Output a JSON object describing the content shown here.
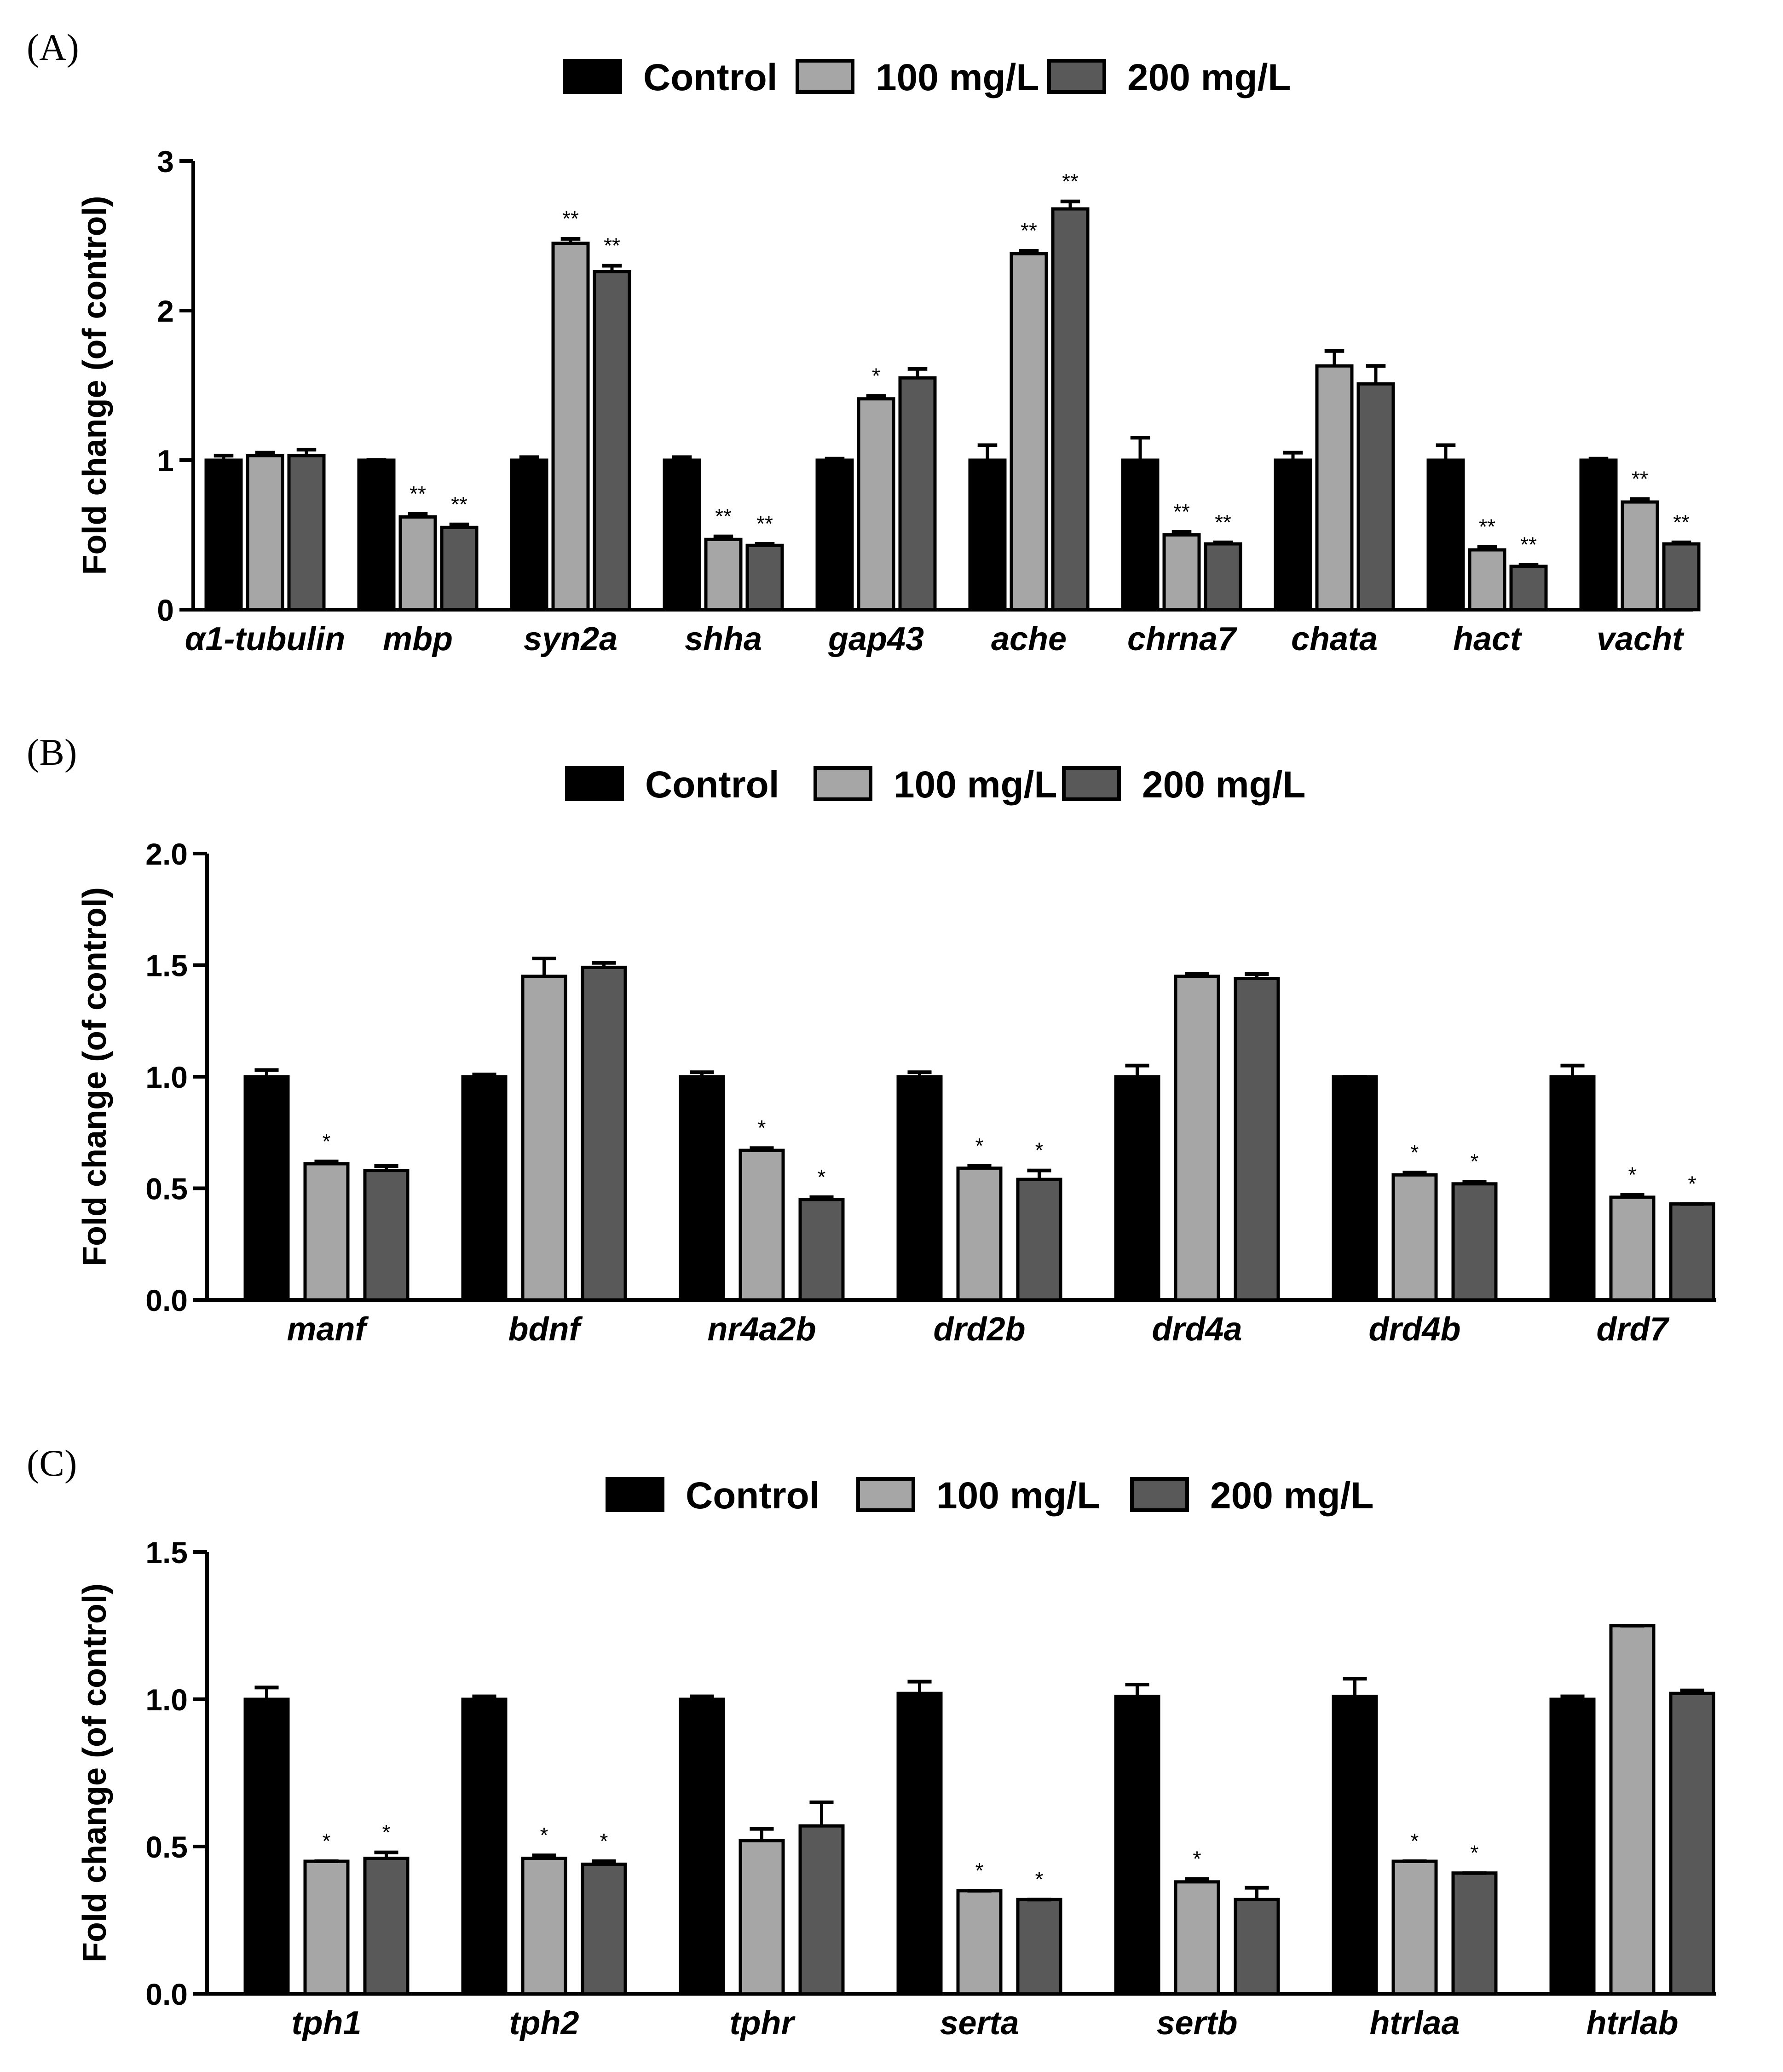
{
  "colors": {
    "control": "#000000",
    "dose100": "#a6a6a6",
    "dose200": "#595959",
    "axis": "#000000"
  },
  "chart_data": [
    {
      "panel": "(A)",
      "type": "bar",
      "legend": [
        "Control",
        "100 mg/L",
        "200 mg/L"
      ],
      "legend_position": "top-center",
      "ylabel": "Fold change (of control)",
      "ylim": [
        0,
        3
      ],
      "yticks": [
        0,
        1,
        2,
        3
      ],
      "ytick_labels": [
        "0",
        "1",
        "2",
        "3"
      ],
      "categories": [
        "α1-tubulin",
        "mbp",
        "syn2a",
        "shha",
        "gap43",
        "ache",
        "chrna7",
        "chata",
        "hact",
        "vacht"
      ],
      "series": [
        {
          "name": "Control",
          "values": [
            1.0,
            1.0,
            1.0,
            1.0,
            1.0,
            1.0,
            1.0,
            1.0,
            1.0,
            1.0
          ],
          "errors": [
            0.03,
            0.0,
            0.02,
            0.02,
            0.01,
            0.1,
            0.15,
            0.05,
            0.1,
            0.01
          ],
          "sig": [
            "",
            "",
            "",
            "",
            "",
            "",
            "",
            "",
            "",
            ""
          ]
        },
        {
          "name": "100 mg/L",
          "values": [
            1.03,
            0.62,
            2.45,
            0.47,
            1.41,
            2.38,
            0.5,
            1.63,
            0.4,
            0.72
          ],
          "errors": [
            0.02,
            0.02,
            0.03,
            0.02,
            0.02,
            0.02,
            0.02,
            0.1,
            0.02,
            0.02
          ],
          "sig": [
            "",
            "**",
            "**",
            "**",
            "*",
            "**",
            "**",
            "",
            "**",
            "**"
          ]
        },
        {
          "name": "200 mg/L",
          "values": [
            1.03,
            0.55,
            2.26,
            0.43,
            1.55,
            2.68,
            0.44,
            1.51,
            0.29,
            0.44
          ],
          "errors": [
            0.04,
            0.02,
            0.04,
            0.01,
            0.06,
            0.05,
            0.01,
            0.12,
            0.01,
            0.01
          ],
          "sig": [
            "",
            "**",
            "**",
            "**",
            "",
            "**",
            "**",
            "",
            "**",
            "**"
          ]
        }
      ]
    },
    {
      "panel": "(B)",
      "type": "bar",
      "legend": [
        "Control",
        "100 mg/L",
        "200 mg/L"
      ],
      "legend_position": "top-center",
      "ylabel": "Fold change (of control)",
      "ylim": [
        0,
        2
      ],
      "yticks": [
        0,
        0.5,
        1,
        1.5,
        2
      ],
      "ytick_labels": [
        "0.0",
        "0.5",
        "1.0",
        "1.5",
        "2.0"
      ],
      "categories": [
        "manf",
        "bdnf",
        "nr4a2b",
        "drd2b",
        "drd4a",
        "drd4b",
        "drd7"
      ],
      "series": [
        {
          "name": "Control",
          "values": [
            1.0,
            1.0,
            1.0,
            1.0,
            1.0,
            1.0,
            1.0
          ],
          "errors": [
            0.03,
            0.01,
            0.02,
            0.02,
            0.05,
            0.0,
            0.05
          ],
          "sig": [
            "",
            "",
            "",
            "",
            "",
            "",
            ""
          ]
        },
        {
          "name": "100 mg/L",
          "values": [
            0.61,
            1.45,
            0.67,
            0.59,
            1.45,
            0.56,
            0.46
          ],
          "errors": [
            0.01,
            0.08,
            0.01,
            0.01,
            0.01,
            0.01,
            0.01
          ],
          "sig": [
            "*",
            "",
            "*",
            "*",
            "",
            "*",
            "*"
          ]
        },
        {
          "name": "200 mg/L",
          "values": [
            0.58,
            1.49,
            0.45,
            0.54,
            1.44,
            0.52,
            0.43
          ],
          "errors": [
            0.02,
            0.02,
            0.01,
            0.04,
            0.02,
            0.01,
            0.0
          ],
          "sig": [
            "",
            "",
            "*",
            "*",
            "",
            "*",
            "*"
          ]
        }
      ]
    },
    {
      "panel": "(C)",
      "type": "bar",
      "legend": [
        "Control",
        "100 mg/L",
        "200 mg/L"
      ],
      "legend_position": "top-center",
      "ylabel": "Fold change (of control)",
      "ylim": [
        0,
        1.5
      ],
      "yticks": [
        0,
        0.5,
        1,
        1.5
      ],
      "ytick_labels": [
        "0.0",
        "0.5",
        "1.0",
        "1.5"
      ],
      "categories": [
        "tph1",
        "tph2",
        "tphr",
        "serta",
        "sertb",
        "htrlaa",
        "htrlab"
      ],
      "series": [
        {
          "name": "Control",
          "values": [
            1.0,
            1.0,
            1.0,
            1.02,
            1.01,
            1.01,
            1.0
          ],
          "errors": [
            0.04,
            0.01,
            0.01,
            0.04,
            0.04,
            0.06,
            0.01
          ],
          "sig": [
            "",
            "",
            "",
            "",
            "",
            "",
            ""
          ]
        },
        {
          "name": "100 mg/L",
          "values": [
            0.45,
            0.46,
            0.52,
            0.35,
            0.38,
            0.45,
            1.25
          ],
          "errors": [
            0.0,
            0.01,
            0.04,
            0.0,
            0.01,
            0.0,
            0.0
          ],
          "sig": [
            "*",
            "*",
            "",
            "*",
            "*",
            "*",
            ""
          ]
        },
        {
          "name": "200 mg/L",
          "values": [
            0.46,
            0.44,
            0.57,
            0.32,
            0.32,
            0.41,
            1.02
          ],
          "errors": [
            0.02,
            0.01,
            0.08,
            0.0,
            0.04,
            0.0,
            0.01
          ],
          "sig": [
            "*",
            "*",
            "",
            "*",
            "",
            "*",
            ""
          ]
        }
      ]
    }
  ]
}
